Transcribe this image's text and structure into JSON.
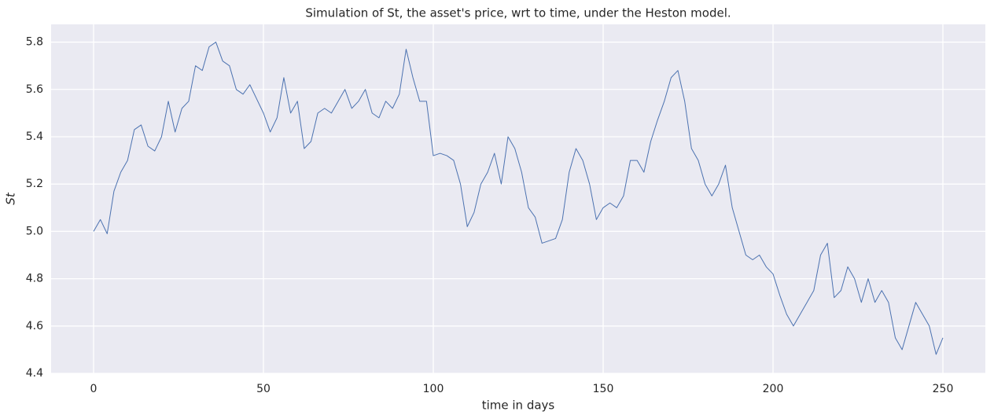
{
  "chart_data": {
    "type": "line",
    "title": "Simulation of St, the asset's price, wrt to time, under the Heston model.",
    "xlabel": "time in days",
    "ylabel": "St",
    "x": [
      0,
      2,
      4,
      6,
      8,
      10,
      12,
      14,
      16,
      18,
      20,
      22,
      24,
      26,
      28,
      30,
      32,
      34,
      36,
      38,
      40,
      42,
      44,
      46,
      48,
      50,
      52,
      54,
      56,
      58,
      60,
      62,
      64,
      66,
      68,
      70,
      72,
      74,
      76,
      78,
      80,
      82,
      84,
      86,
      88,
      90,
      92,
      94,
      96,
      98,
      100,
      102,
      104,
      106,
      108,
      110,
      112,
      114,
      116,
      118,
      120,
      122,
      124,
      126,
      128,
      130,
      132,
      134,
      136,
      138,
      140,
      142,
      144,
      146,
      148,
      150,
      152,
      154,
      156,
      158,
      160,
      162,
      164,
      166,
      168,
      170,
      172,
      174,
      176,
      178,
      180,
      182,
      184,
      186,
      188,
      190,
      192,
      194,
      196,
      198,
      200,
      202,
      204,
      206,
      208,
      210,
      212,
      214,
      216,
      218,
      220,
      222,
      224,
      226,
      228,
      230,
      232,
      234,
      236,
      238,
      240,
      242,
      244,
      246,
      248,
      250
    ],
    "series": [
      {
        "color": "#4c72b0",
        "values": [
          5.0,
          5.05,
          4.99,
          5.17,
          5.25,
          5.3,
          5.43,
          5.45,
          5.36,
          5.34,
          5.4,
          5.55,
          5.42,
          5.52,
          5.55,
          5.7,
          5.68,
          5.78,
          5.8,
          5.72,
          5.7,
          5.6,
          5.58,
          5.62,
          5.56,
          5.5,
          5.42,
          5.48,
          5.65,
          5.5,
          5.55,
          5.35,
          5.38,
          5.5,
          5.52,
          5.5,
          5.55,
          5.6,
          5.52,
          5.55,
          5.6,
          5.5,
          5.48,
          5.55,
          5.52,
          5.58,
          5.77,
          5.65,
          5.55,
          5.55,
          5.32,
          5.33,
          5.32,
          5.3,
          5.2,
          5.02,
          5.08,
          5.2,
          5.25,
          5.33,
          5.2,
          5.4,
          5.35,
          5.25,
          5.1,
          5.06,
          4.95,
          4.96,
          4.97,
          5.05,
          5.25,
          5.35,
          5.3,
          5.2,
          5.05,
          5.1,
          5.12,
          5.1,
          5.15,
          5.3,
          5.3,
          5.25,
          5.38,
          5.47,
          5.55,
          5.65,
          5.68,
          5.55,
          5.35,
          5.3,
          5.2,
          5.15,
          5.2,
          5.28,
          5.1,
          5.0,
          4.9,
          4.88,
          4.9,
          4.85,
          4.82,
          4.73,
          4.65,
          4.6,
          4.65,
          4.7,
          4.75,
          4.9,
          4.95,
          4.72,
          4.75,
          4.85,
          4.8,
          4.7,
          4.8,
          4.7,
          4.75,
          4.7,
          4.55,
          4.5,
          4.6,
          4.7,
          4.65,
          4.6,
          4.48,
          4.55
        ]
      }
    ],
    "xlim": [
      -12.5,
      262.5
    ],
    "ylim": [
      4.4,
      5.875
    ],
    "xticks": [
      0,
      50,
      100,
      150,
      200,
      250
    ],
    "yticks": [
      4.4,
      4.6,
      4.8,
      {
        "value": 5,
        "label": "5.0"
      },
      5.2,
      5.4,
      5.6,
      5.8
    ],
    "grid": true
  }
}
